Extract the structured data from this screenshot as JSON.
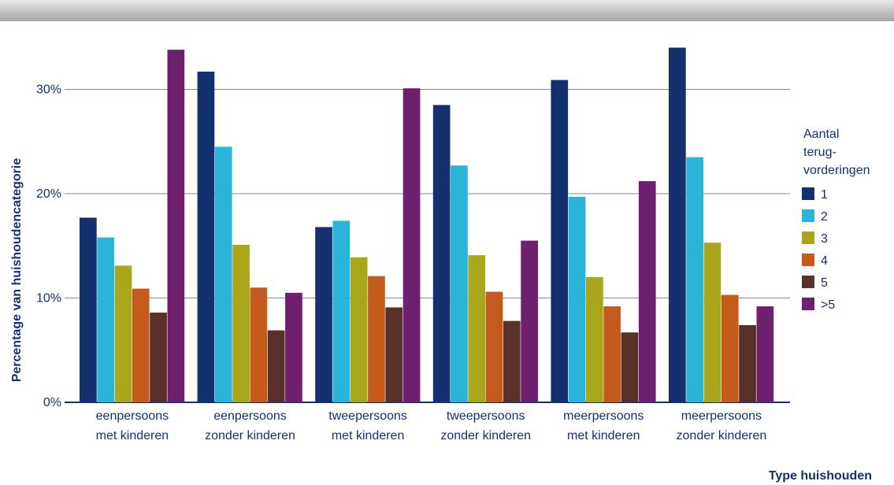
{
  "chart_data": {
    "type": "bar",
    "categories": [
      [
        "eenpersoons",
        "met kinderen"
      ],
      [
        "eenpersoons",
        "zonder kinderen"
      ],
      [
        "tweepersoons",
        "met kinderen"
      ],
      [
        "tweepersoons",
        "zonder kinderen"
      ],
      [
        "meerpersoons",
        "met kinderen"
      ],
      [
        "meerpersoons",
        "zonder kinderen"
      ]
    ],
    "series": [
      {
        "name": "1",
        "color": "#14306e",
        "values": [
          17.7,
          31.7,
          16.8,
          28.5,
          30.9,
          34.0
        ]
      },
      {
        "name": "2",
        "color": "#2ab4d8",
        "values": [
          15.8,
          24.5,
          17.4,
          22.7,
          19.7,
          23.5
        ]
      },
      {
        "name": "3",
        "color": "#a8a61a",
        "values": [
          13.1,
          15.1,
          13.9,
          14.1,
          12.0,
          15.3
        ]
      },
      {
        "name": "4",
        "color": "#c45a1b",
        "values": [
          10.9,
          11.0,
          12.1,
          10.6,
          9.2,
          10.3
        ]
      },
      {
        "name": "5",
        "color": "#5a302a",
        "values": [
          8.6,
          6.9,
          9.1,
          7.8,
          6.7,
          7.4
        ]
      },
      {
        "name": ">5",
        "color": "#6e1f6e",
        "values": [
          33.8,
          10.5,
          30.1,
          15.5,
          21.2,
          9.2
        ]
      }
    ],
    "yticks": [
      "0%",
      "10%",
      "20%",
      "30%"
    ],
    "ylim": [
      0,
      35
    ],
    "ylabel": "Percentage van huishoudencategorie",
    "xlabel": "Type huishouden",
    "legend_title": [
      "Aantal",
      "terug-",
      "vorderingen"
    ],
    "legend_position": "right",
    "grid": true
  }
}
